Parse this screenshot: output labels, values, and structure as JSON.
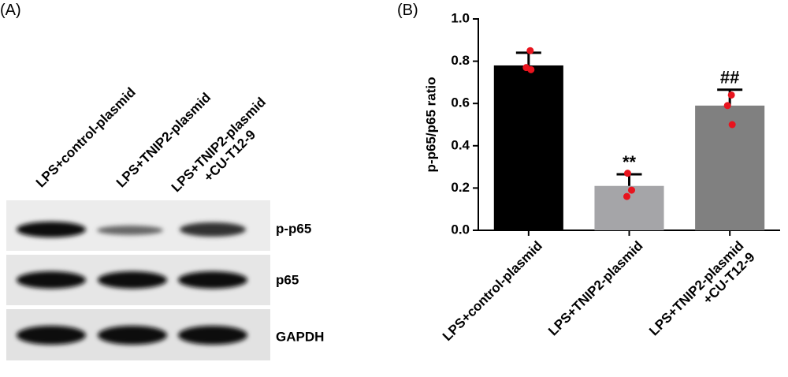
{
  "panel_a": {
    "label": "(A)",
    "lanes": [
      "LPS+control-plasmid",
      "LPS+TNIP2-plasmid",
      "LPS+TNIP2-plasmid\n+CU-T12-9"
    ],
    "proteins": [
      "p-p65",
      "p65",
      "GAPDH"
    ]
  },
  "chart_data": {
    "type": "bar",
    "panel_label": "(B)",
    "y_label": "p-p65/p65 ratio",
    "categories": [
      "LPS+control-plasmid",
      "LPS+TNIP2-plasmid",
      "LPS+TNIP2-plasmid\n+CU-T12-9"
    ],
    "values": [
      0.78,
      0.21,
      0.59
    ],
    "errors": [
      0.06,
      0.055,
      0.075
    ],
    "points": [
      [
        0.85,
        0.77,
        0.76
      ],
      [
        0.27,
        0.19,
        0.16
      ],
      [
        0.64,
        0.59,
        0.5
      ]
    ],
    "colors": [
      "#000000",
      "#a5a5a8",
      "#808080"
    ],
    "point_color": "#e8141e",
    "annotations": [
      {
        "x": "LPS+TNIP2-plasmid",
        "text": "**"
      },
      {
        "x": "LPS+TNIP2-plasmid\n+CU-T12-9",
        "text": "##"
      }
    ],
    "ylim": [
      0,
      1
    ],
    "yticks": [
      {
        "value": 0,
        "label": "0.0"
      },
      0.2,
      0.4,
      0.6,
      0.8,
      {
        "value": 1,
        "label": "1.0"
      }
    ]
  }
}
